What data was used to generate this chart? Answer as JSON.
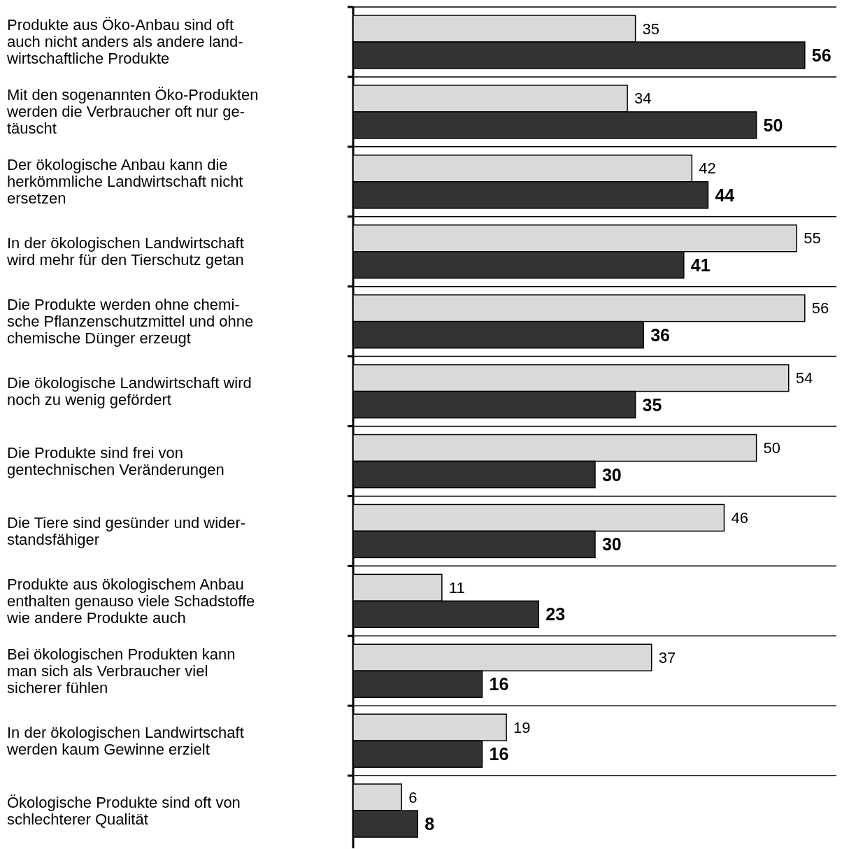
{
  "chart_data": {
    "type": "bar",
    "orientation": "horizontal",
    "data_labels": true,
    "grid": "y",
    "categories": [
      "Produkte aus Öko-Anbau sind oft\nauch nicht anders als andere land-\nwirtschaftliche Produkte",
      "Mit den sogenannten Öko-Produkten\nwerden die Verbraucher oft nur ge-\ntäuscht",
      "Der ökologische Anbau kann die\nherkömmliche Landwirtschaft nicht\nersetzen",
      "In der ökologischen Landwirtschaft\nwird mehr für den Tierschutz getan",
      "Die Produkte werden ohne chemi-\nsche Pflanzenschutzmittel und ohne\nchemische Dünger erzeugt",
      "Die ökologische Landwirtschaft wird\nnoch zu wenig gefördert",
      "Die Produkte sind frei von\ngentechnischen Veränderungen",
      "Die Tiere sind gesünder und wider-\nstandsfähiger",
      "Produkte aus ökologischem Anbau\nenthalten genauso viele Schadstoffe\nwie andere Produkte auch",
      "Bei ökologischen Produkten kann\nman sich als Verbraucher viel\nsicherer fühlen",
      "In der ökologischen Landwirtschaft\nwerden kaum Gewinne erzielt",
      "Ökologische Produkte sind oft von\nschlechterer Qualität"
    ],
    "series": [
      {
        "color": "#d9d9d9",
        "values": [
          35,
          34,
          42,
          55,
          56,
          54,
          50,
          46,
          11,
          37,
          19,
          6
        ]
      },
      {
        "color": "#333333",
        "values": [
          56,
          50,
          44,
          41,
          36,
          35,
          30,
          30,
          23,
          16,
          16,
          8
        ]
      }
    ]
  }
}
